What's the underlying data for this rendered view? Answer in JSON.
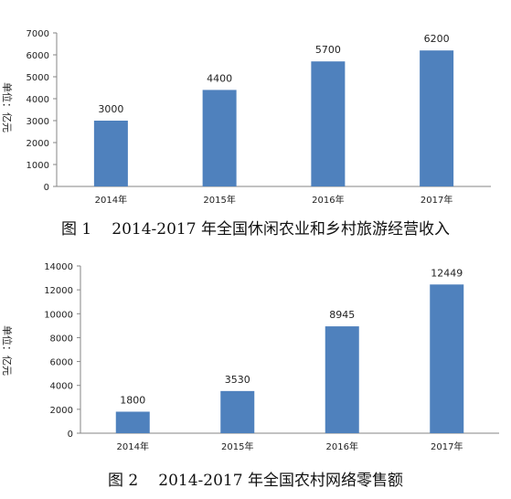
{
  "chart_data": [
    {
      "type": "bar",
      "categories": [
        "2014年",
        "2015年",
        "2016年",
        "2017年"
      ],
      "values": [
        3000,
        4400,
        5700,
        6200
      ],
      "ylim": [
        0,
        7000
      ],
      "yticks": [
        0,
        1000,
        2000,
        3000,
        4000,
        5000,
        6000,
        7000
      ],
      "ylabel": "单位：亿元",
      "bar_color": "#4f81bd",
      "caption_number": "图 1",
      "caption_text": "2014-2017 年全国休闲农业和乡村旅游经营收入"
    },
    {
      "type": "bar",
      "categories": [
        "2014年",
        "2015年",
        "2016年",
        "2017年"
      ],
      "values": [
        1800,
        3530,
        8945,
        12449
      ],
      "ylim": [
        0,
        14000
      ],
      "yticks": [
        0,
        2000,
        4000,
        6000,
        8000,
        10000,
        12000,
        14000
      ],
      "ylabel": "单位：亿元",
      "bar_color": "#4f81bd",
      "caption_number": "图 2",
      "caption_text": "2014-2017 年全国农村网络零售额"
    }
  ]
}
